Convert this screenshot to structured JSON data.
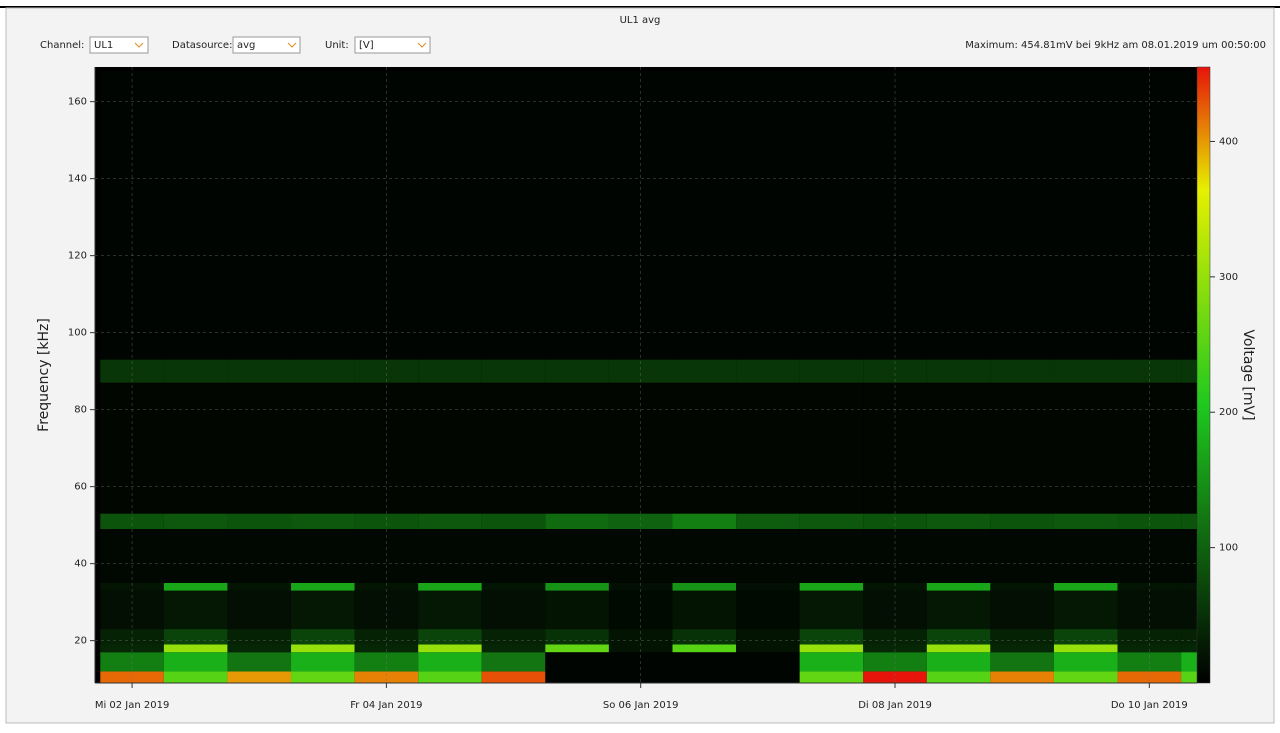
{
  "header": {
    "title": "UL1 avg",
    "channel_label": "Channel:",
    "channel_value": "UL1",
    "datasource_label": "Datasource:",
    "datasource_value": "avg",
    "unit_label": "Unit:",
    "unit_value": "[V]",
    "maximum": "Maximum: 454.81mV bei 9kHz am 08.01.2019 um 00:50:00"
  },
  "chart_data": {
    "type": "heatmap",
    "y_label": "Frequency [kHz]",
    "colorbar_label": "Voltage [mV]",
    "xlim": [
      "2019-01-01T17:00",
      "2019-01-10T09:00"
    ],
    "xticks": [
      {
        "value": "2019-01-02T00:00",
        "label": "Mi 02 Jan 2019"
      },
      {
        "value": "2019-01-04T00:00",
        "label": "Fr 04 Jan 2019"
      },
      {
        "value": "2019-01-06T00:00",
        "label": "So 06 Jan 2019"
      },
      {
        "value": "2019-01-08T00:00",
        "label": "Di 08 Jan 2019"
      },
      {
        "value": "2019-01-10T00:00",
        "label": "Do 10 Jan 2019"
      }
    ],
    "ylim": [
      9,
      169
    ],
    "yticks": [
      20,
      40,
      60,
      80,
      100,
      120,
      140,
      160
    ],
    "zlim": [
      0,
      455
    ],
    "zticks": [
      100,
      200,
      300,
      400
    ],
    "grid": true,
    "x_bins": [
      "2019-01-01T18:00",
      "2019-01-02T06:00",
      "2019-01-02T18:00",
      "2019-01-03T06:00",
      "2019-01-03T18:00",
      "2019-01-04T06:00",
      "2019-01-04T18:00",
      "2019-01-05T06:00",
      "2019-01-05T18:00",
      "2019-01-06T06:00",
      "2019-01-06T18:00",
      "2019-01-07T06:00",
      "2019-01-07T18:00",
      "2019-01-08T06:00",
      "2019-01-08T18:00",
      "2019-01-09T06:00",
      "2019-01-09T18:00",
      "2019-01-10T06:00",
      "2019-01-10T09:00"
    ],
    "y_bins": [
      9,
      12,
      17,
      19,
      23,
      33,
      35,
      49,
      53,
      87,
      93,
      168
    ],
    "values": [
      [
        420,
        250,
        400,
        260,
        410,
        250,
        430,
        5,
        5,
        5,
        5,
        260,
        455,
        250,
        410,
        260,
        420,
        250
      ],
      [
        130,
        180,
        120,
        180,
        130,
        180,
        120,
        5,
        5,
        5,
        5,
        180,
        130,
        180,
        120,
        180,
        130,
        180
      ],
      [
        40,
        300,
        40,
        300,
        40,
        300,
        40,
        260,
        20,
        250,
        20,
        300,
        40,
        300,
        40,
        300,
        40,
        40
      ],
      [
        35,
        70,
        35,
        70,
        35,
        70,
        35,
        50,
        20,
        50,
        20,
        70,
        35,
        70,
        35,
        70,
        35,
        35
      ],
      [
        15,
        25,
        15,
        25,
        15,
        25,
        15,
        20,
        10,
        20,
        10,
        25,
        15,
        25,
        15,
        25,
        15,
        15
      ],
      [
        20,
        170,
        20,
        170,
        20,
        170,
        20,
        150,
        15,
        150,
        15,
        170,
        20,
        170,
        20,
        170,
        20,
        20
      ],
      [
        8,
        8,
        8,
        8,
        8,
        8,
        8,
        8,
        8,
        8,
        8,
        8,
        8,
        8,
        8,
        8,
        8,
        8
      ],
      [
        85,
        90,
        85,
        90,
        85,
        90,
        85,
        110,
        100,
        130,
        95,
        90,
        85,
        90,
        85,
        90,
        85,
        85
      ],
      [
        6,
        6,
        6,
        6,
        6,
        6,
        6,
        6,
        6,
        6,
        6,
        6,
        6,
        6,
        6,
        6,
        6,
        6
      ],
      [
        55,
        55,
        55,
        55,
        55,
        55,
        55,
        55,
        55,
        55,
        55,
        55,
        55,
        55,
        55,
        55,
        55,
        55
      ],
      [
        5,
        5,
        5,
        5,
        5,
        5,
        5,
        5,
        5,
        5,
        5,
        5,
        5,
        5,
        5,
        5,
        5,
        5
      ]
    ]
  }
}
